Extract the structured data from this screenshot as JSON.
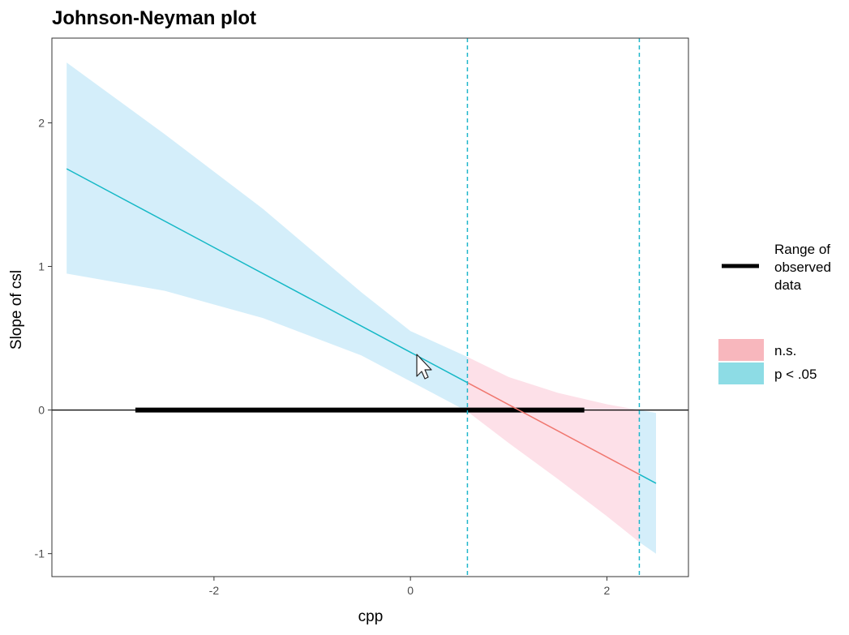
{
  "chart_data": {
    "type": "line",
    "title": "Johnson-Neyman plot",
    "xlabel": "cpp",
    "ylabel": "Slope of csl",
    "xlim": [
      -3.65,
      2.83
    ],
    "ylim": [
      -1.16,
      2.59
    ],
    "x_ticks": [
      -2,
      0,
      2
    ],
    "y_ticks": [
      -1,
      0,
      1,
      2
    ],
    "x_tick_labels": [
      "-2",
      "0",
      "2"
    ],
    "y_tick_labels": [
      "-1",
      "0",
      "1",
      "2"
    ],
    "grid": false,
    "slope_line": {
      "x": [
        -3.5,
        2.5
      ],
      "y": [
        1.68,
        -0.51
      ]
    },
    "confidence_band": {
      "x": [
        -3.5,
        -2.5,
        -1.5,
        -0.5,
        0.0,
        0.58,
        1.0,
        1.5,
        2.0,
        2.33,
        2.5
      ],
      "upper": [
        2.42,
        1.92,
        1.4,
        0.82,
        0.55,
        0.37,
        0.23,
        0.12,
        0.04,
        0.0,
        -0.02
      ],
      "lower": [
        0.95,
        0.83,
        0.64,
        0.38,
        0.2,
        -0.01,
        -0.23,
        -0.48,
        -0.74,
        -0.92,
        -1.0
      ]
    },
    "jn_bounds": [
      0.58,
      2.33
    ],
    "significance_regions": [
      {
        "label": "p < .05",
        "from": -3.5,
        "to": 0.58
      },
      {
        "label": "n.s.",
        "from": 0.58,
        "to": 2.33
      },
      {
        "label": "p < .05",
        "from": 2.33,
        "to": 2.5
      }
    ],
    "observed_range": [
      -2.8,
      1.77
    ],
    "legend": {
      "placement": "right",
      "range_label_lines": [
        "Range of",
        "observed",
        "data"
      ],
      "significance_entries": [
        {
          "label": "n.s.",
          "color": "#f8b7bd"
        },
        {
          "label": "p < .05",
          "color": "#8ddce5"
        }
      ]
    },
    "colors": {
      "sig_line": "#15b8c6",
      "sig_fill": "#d4eefa",
      "ns_line": "#f0776f",
      "ns_fill": "#fde0e8",
      "jn_line": "#1fb6cb",
      "range_bar": "#000000"
    }
  }
}
